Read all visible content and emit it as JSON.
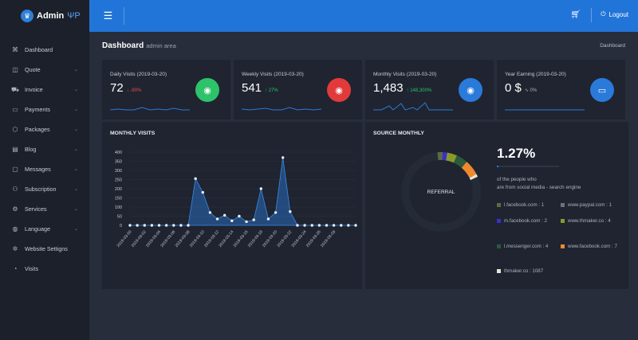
{
  "brand": {
    "name": "Admin",
    "suffix": "ΨP"
  },
  "sidebar": {
    "items": [
      {
        "label": "Dashboard",
        "icon": "command-icon",
        "chev": false
      },
      {
        "label": "Quote",
        "icon": "box-icon",
        "chev": true
      },
      {
        "label": "Invoice",
        "icon": "cart-icon",
        "chev": true
      },
      {
        "label": "Payments",
        "icon": "credit-card-icon",
        "chev": true
      },
      {
        "label": "Packages",
        "icon": "package-icon",
        "chev": true
      },
      {
        "label": "Blog",
        "icon": "book-icon",
        "chev": true
      },
      {
        "label": "Messages",
        "icon": "message-icon",
        "chev": true
      },
      {
        "label": "Subscription",
        "icon": "users-icon",
        "chev": true
      },
      {
        "label": "Services",
        "icon": "settings-icon",
        "chev": true
      },
      {
        "label": "Language",
        "icon": "globe-icon",
        "chev": true
      },
      {
        "label": "Website Settigns",
        "icon": "cog-icon",
        "chev": false
      },
      {
        "label": "Visits",
        "icon": "pie-chart-icon",
        "chev": false
      }
    ]
  },
  "topbar": {
    "logout": "Logout"
  },
  "page": {
    "title": "Dashboard",
    "subtitle": "admin area",
    "breadcrumb": "Dashboard"
  },
  "cards": [
    {
      "label": "Daily Visits (2019-03-20)",
      "value": "72",
      "change": "↓ -80%",
      "change_color": "#e64a4a",
      "icon_bg": "#2ec26a"
    },
    {
      "label": "Weekly Visits (2019-03-20)",
      "value": "541",
      "change": "↑ 27%",
      "change_color": "#2ec26a",
      "icon_bg": "#e23a3a"
    },
    {
      "label": "Monthly Visits (2019-03-20)",
      "value": "1,483",
      "change": "↑ 148,300%",
      "change_color": "#2ec26a",
      "icon_bg": "#2a7ad9"
    },
    {
      "label": "Year Earning (2019-03-20)",
      "value": "0 $",
      "change": "∿ 0%",
      "change_color": "#aab2be",
      "icon_bg": "#2a7ad9"
    }
  ],
  "monthly": {
    "title": "MONTHLY VISITS"
  },
  "source": {
    "title": "SOURCE MONTHLY",
    "center": "REFERRAL",
    "percent": "1.27%",
    "desc1": "of the people who",
    "desc2": "are from social media - search engine",
    "legend": [
      {
        "label": "l.facebook.com : 1",
        "color": "#5b6b45"
      },
      {
        "label": "www.paypal.com : 1",
        "color": "#6d717a"
      },
      {
        "label": "m.facebook.com : 2",
        "color": "#3a2fd0"
      },
      {
        "label": "www.thmaker.co : 4",
        "color": "#8a9a2a"
      },
      {
        "label": "l.messenger.com : 4",
        "color": "#2a5a3a"
      },
      {
        "label": "www.facebook.com : 7",
        "color": "#f0892e"
      },
      {
        "label": "thmaker.co : 1087",
        "color": "#e8e4dc"
      }
    ]
  },
  "chart_data": {
    "type": "area",
    "title": "MONTHLY VISITS",
    "ylim": [
      0,
      400
    ],
    "yticks": [
      "0",
      "50",
      "100",
      "150",
      "200",
      "250",
      "300",
      "350",
      "400"
    ],
    "xtick_labels": [
      "2019-03-00",
      "2019-03-02",
      "2019-03-04",
      "2019-03-06",
      "2019-03-08",
      "2019-03-10",
      "2019-03-12",
      "2019-03-14",
      "2019-03-16",
      "2019-03-18",
      "2019-03-20",
      "2019-03-22",
      "2019-03-24",
      "2019-03-26",
      "2019-03-28"
    ],
    "values": [
      0,
      0,
      0,
      0,
      0,
      0,
      0,
      0,
      0,
      255,
      180,
      70,
      35,
      55,
      25,
      50,
      20,
      30,
      200,
      35,
      70,
      370,
      75,
      0,
      0,
      0,
      0,
      0,
      0,
      0,
      0,
      0
    ]
  }
}
